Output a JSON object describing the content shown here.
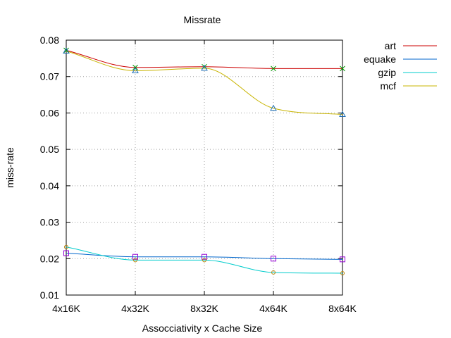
{
  "chart_data": {
    "type": "line",
    "title": "Missrate",
    "xlabel": "Assocciativity x Cache Size",
    "ylabel": "miss-rate",
    "categories": [
      "4x16K",
      "4x32K",
      "8x32K",
      "4x64K",
      "8x64K"
    ],
    "ylim": [
      0.01,
      0.08
    ],
    "yticks": [
      "0.01",
      "0.02",
      "0.03",
      "0.04",
      "0.05",
      "0.06",
      "0.07",
      "0.08"
    ],
    "grid": true,
    "legend_position": "right",
    "series": [
      {
        "name": "art",
        "color": "#cc0000",
        "marker": "x-cross",
        "values": [
          0.0772,
          0.0725,
          0.0727,
          0.0722,
          0.0722
        ]
      },
      {
        "name": "equake",
        "color": "#0066cc",
        "marker": "square",
        "values": [
          0.0215,
          0.0205,
          0.0205,
          0.02,
          0.0198
        ]
      },
      {
        "name": "gzip",
        "color": "#00cccc",
        "marker": "circle",
        "values": [
          0.0232,
          0.0196,
          0.0196,
          0.0162,
          0.016
        ]
      },
      {
        "name": "mcf",
        "color": "#c8b400",
        "marker": "triangle",
        "values": [
          0.077,
          0.0716,
          0.0723,
          0.0613,
          0.0596
        ]
      }
    ]
  }
}
